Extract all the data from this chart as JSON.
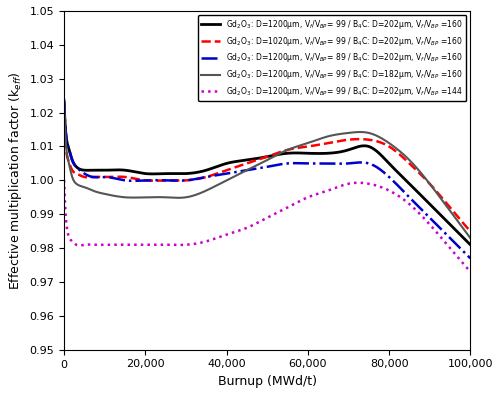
{
  "title": "",
  "xlabel": "Burnup (MWd/t)",
  "ylabel": "Effective multiplication factor (k$_{eff}$)",
  "xlim": [
    0,
    100000
  ],
  "ylim": [
    0.95,
    1.05
  ],
  "yticks": [
    0.95,
    0.96,
    0.97,
    0.98,
    0.99,
    1.0,
    1.01,
    1.02,
    1.03,
    1.04,
    1.05
  ],
  "xticks": [
    0,
    20000,
    40000,
    60000,
    80000,
    100000
  ],
  "lines": [
    {
      "label": "Gd$_2$O$_3$: D=1200μm, V$_f$/V$_{BP}$= 99 / B$_4$C: D=202μm, V$_f$/V$_{BP}$ =160",
      "color": "#000000",
      "linestyle": "solid",
      "linewidth": 2.0,
      "x": [
        0,
        500,
        1000,
        2000,
        3000,
        5000,
        7000,
        10000,
        15000,
        20000,
        25000,
        30000,
        35000,
        40000,
        45000,
        50000,
        55000,
        60000,
        65000,
        70000,
        75000,
        80000,
        85000,
        90000,
        95000,
        100000
      ],
      "y": [
        1.023,
        1.013,
        1.01,
        1.006,
        1.004,
        1.003,
        1.003,
        1.003,
        1.003,
        1.002,
        1.002,
        1.002,
        1.003,
        1.005,
        1.006,
        1.007,
        1.008,
        1.008,
        1.008,
        1.009,
        1.01,
        1.005,
        0.999,
        0.993,
        0.987,
        0.981
      ]
    },
    {
      "label": "Gd$_2$O$_3$: **D=1020μm**, V$_f$/V$_{BP}$= 99 / B$_4$C: D=202μm, V$_f$/V$_{BP}$ =160",
      "color": "#ff0000",
      "linestyle": "dashed",
      "linewidth": 1.8,
      "x": [
        0,
        500,
        1000,
        2000,
        3000,
        5000,
        7000,
        10000,
        15000,
        20000,
        25000,
        30000,
        35000,
        40000,
        45000,
        50000,
        55000,
        60000,
        65000,
        70000,
        75000,
        80000,
        85000,
        90000,
        95000,
        100000
      ],
      "y": [
        1.02,
        1.009,
        1.006,
        1.003,
        1.002,
        1.001,
        1.001,
        1.001,
        1.001,
        1.0,
        1.0,
        1.0,
        1.001,
        1.003,
        1.005,
        1.007,
        1.009,
        1.01,
        1.011,
        1.012,
        1.012,
        1.01,
        1.005,
        0.999,
        0.992,
        0.985
      ]
    },
    {
      "label": "Gd$_2$O$_3$: D=1200μm, V$_f$/V$_{BP}$= **89** / B$_4$C: D=202μm, V$_f$/V$_{BP}$ =160",
      "color": "#0000cc",
      "linestyle": "dashdot",
      "linewidth": 1.8,
      "x": [
        0,
        500,
        1000,
        2000,
        3000,
        5000,
        7000,
        10000,
        15000,
        20000,
        25000,
        30000,
        35000,
        40000,
        45000,
        50000,
        55000,
        60000,
        65000,
        70000,
        75000,
        80000,
        85000,
        90000,
        95000,
        100000
      ],
      "y": [
        1.024,
        1.013,
        1.01,
        1.006,
        1.004,
        1.002,
        1.001,
        1.001,
        1.0,
        1.0,
        1.0,
        1.0,
        1.001,
        1.002,
        1.003,
        1.004,
        1.005,
        1.005,
        1.005,
        1.005,
        1.005,
        1.001,
        0.995,
        0.989,
        0.983,
        0.977
      ]
    },
    {
      "label": "Gd$_2$O$_3$: D=1200μm, V$_f$/V$_{BP}$= 99 / B$_4$C: **D=182μm**, V$_f$/V$_{BP}$ =160",
      "color": "#555555",
      "linestyle": "solid",
      "linewidth": 1.5,
      "x": [
        0,
        500,
        1000,
        2000,
        3000,
        5000,
        7000,
        10000,
        15000,
        20000,
        25000,
        30000,
        35000,
        40000,
        45000,
        50000,
        55000,
        60000,
        65000,
        70000,
        75000,
        80000,
        85000,
        90000,
        95000,
        100000
      ],
      "y": [
        1.023,
        1.01,
        1.006,
        1.001,
        0.999,
        0.998,
        0.997,
        0.996,
        0.995,
        0.995,
        0.995,
        0.995,
        0.997,
        1.0,
        1.003,
        1.006,
        1.009,
        1.011,
        1.013,
        1.014,
        1.014,
        1.011,
        1.006,
        0.999,
        0.991,
        0.983
      ]
    },
    {
      "label": "Gd$_2$O$_3$: D=1200μm, V$_f$/V$_{BP}$= 99 / B$_4$C: D=202μm, V$_f$/V$_{BP}$ =**144**",
      "color": "#cc00cc",
      "linestyle": "dotted",
      "linewidth": 1.8,
      "x": [
        0,
        500,
        1000,
        2000,
        3000,
        5000,
        7000,
        10000,
        15000,
        20000,
        25000,
        30000,
        35000,
        40000,
        45000,
        50000,
        55000,
        60000,
        65000,
        70000,
        75000,
        80000,
        85000,
        90000,
        95000,
        100000
      ],
      "y": [
        1.0,
        0.988,
        0.984,
        0.982,
        0.981,
        0.981,
        0.981,
        0.981,
        0.981,
        0.981,
        0.981,
        0.981,
        0.982,
        0.984,
        0.986,
        0.989,
        0.992,
        0.995,
        0.997,
        0.999,
        0.999,
        0.997,
        0.993,
        0.987,
        0.98,
        0.973
      ]
    }
  ],
  "legend_labels": [
    "Gd$_2$O$_3$: D=1200μm, V$_f$/V$_{BP}$= 99 / B$_4$C: D=202μm, V$_f$/V$_{BP}$ =160",
    "Gd$_2$O$_3$: D=1020μm, V$_f$/V$_{BP}$= 99 / B$_4$C: D=202μm, V$_f$/V$_{BP}$ =160",
    "Gd$_2$O$_3$: D=1200μm, V$_f$/V$_{BP}$= 89 / B$_4$C: D=202μm, V$_f$/V$_{BP}$ =160",
    "Gd$_2$O$_3$: D=1200μm, V$_f$/V$_{BP}$= 99 / B$_4$C: D=182μm, V$_f$/V$_{BP}$ =160",
    "Gd$_2$O$_3$: D=1200μm, V$_f$/V$_{BP}$= 99 / B$_4$C: D=202μm, V$_f$/V$_{BP}$ =144"
  ]
}
